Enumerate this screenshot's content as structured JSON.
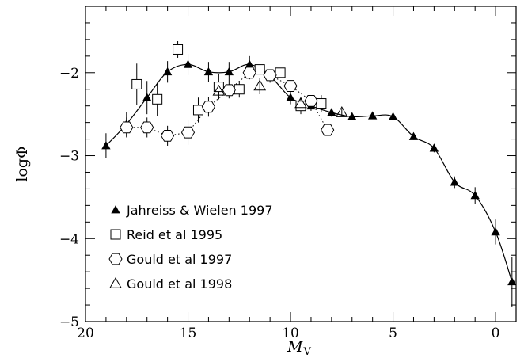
{
  "chart_data": {
    "type": "scatter",
    "title": "",
    "xlabel": "M_V",
    "xlabel_main": "M",
    "xlabel_sub": "V",
    "ylabel": "logΦ",
    "xlim": [
      20,
      -1
    ],
    "ylim": [
      -5,
      -1.2
    ],
    "x_reversed": true,
    "grid": false,
    "legend_position": "bottom-left",
    "xticks": [
      20,
      15,
      10,
      5,
      0
    ],
    "xtick_labels": [
      "20",
      "15",
      "10",
      "5",
      "0"
    ],
    "yticks": [
      -2,
      -3,
      -4,
      -5
    ],
    "ytick_labels": [
      "−2",
      "−3",
      "−4",
      "−5"
    ],
    "series": [
      {
        "name": "Jahreiss & Wielen 1997",
        "marker": "filled-triangle",
        "connect": "smooth-solid",
        "points": [
          {
            "x": 19,
            "y": -2.88,
            "err": 0.15
          },
          {
            "x": 18,
            "y": -2.62,
            "err": 0.15
          },
          {
            "x": 17,
            "y": -2.3,
            "err": 0.2
          },
          {
            "x": 16,
            "y": -1.99,
            "err": 0.13
          },
          {
            "x": 15,
            "y": -1.9,
            "err": 0.13
          },
          {
            "x": 14,
            "y": -1.99,
            "err": 0.12
          },
          {
            "x": 13,
            "y": -1.99,
            "err": 0.12
          },
          {
            "x": 12,
            "y": -1.9,
            "err": 0.1
          },
          {
            "x": 11,
            "y": -2.04,
            "err": 0.08
          },
          {
            "x": 10,
            "y": -2.3,
            "err": 0.08
          },
          {
            "x": 9,
            "y": -2.4,
            "err": 0.06
          },
          {
            "x": 8,
            "y": -2.48,
            "err": 0.05
          },
          {
            "x": 7,
            "y": -2.53,
            "err": 0.04
          },
          {
            "x": 6,
            "y": -2.52,
            "err": 0.04
          },
          {
            "x": 5,
            "y": -2.53,
            "err": 0.04
          },
          {
            "x": 4,
            "y": -2.77,
            "err": 0.04
          },
          {
            "x": 3,
            "y": -2.91,
            "err": 0.05
          },
          {
            "x": 2,
            "y": -3.32,
            "err": 0.07
          },
          {
            "x": 1,
            "y": -3.48,
            "err": 0.1
          },
          {
            "x": 0,
            "y": -3.92,
            "err": 0.15
          },
          {
            "x": -0.8,
            "y": -4.52,
            "err": 0.3
          }
        ]
      },
      {
        "name": "Reid et al 1995",
        "marker": "open-square",
        "connect": "none",
        "points": [
          {
            "x": 17.5,
            "y": -2.14,
            "err": 0.25
          },
          {
            "x": 16.5,
            "y": -2.32,
            "err": 0.2
          },
          {
            "x": 15.5,
            "y": -1.72,
            "err": 0.1
          },
          {
            "x": 14.5,
            "y": -2.45,
            "err": 0.15
          },
          {
            "x": 13.5,
            "y": -2.17,
            "err": 0.15
          },
          {
            "x": 12.5,
            "y": -2.2,
            "err": 0.1
          },
          {
            "x": 11.5,
            "y": -1.96,
            "err": 0.05
          },
          {
            "x": 10.5,
            "y": -2.0,
            "err": 0.05
          },
          {
            "x": 9.5,
            "y": -2.4,
            "err": 0.1
          },
          {
            "x": 8.5,
            "y": -2.37,
            "err": 0.1
          }
        ]
      },
      {
        "name": "Gould et al 1997",
        "marker": "open-hexagon",
        "connect": "dotted",
        "points": [
          {
            "x": 18,
            "y": -2.66,
            "err": 0.12
          },
          {
            "x": 17,
            "y": -2.66,
            "err": 0.12
          },
          {
            "x": 16,
            "y": -2.76,
            "err": 0.12
          },
          {
            "x": 15,
            "y": -2.72,
            "err": 0.15
          },
          {
            "x": 14,
            "y": -2.41,
            "err": 0.12
          },
          {
            "x": 13,
            "y": -2.21,
            "err": 0.1
          },
          {
            "x": 12,
            "y": -2.0,
            "err": 0.08
          },
          {
            "x": 11,
            "y": -2.03,
            "err": 0.06
          },
          {
            "x": 10,
            "y": -2.16,
            "err": 0.06
          },
          {
            "x": 9,
            "y": -2.34,
            "err": 0.06
          },
          {
            "x": 8.2,
            "y": -2.69,
            "err": 0.05
          }
        ]
      },
      {
        "name": "Gould et al 1998",
        "marker": "open-triangle",
        "connect": "none",
        "points": [
          {
            "x": 13.5,
            "y": -2.22,
            "err": 0.1
          },
          {
            "x": 11.5,
            "y": -2.16,
            "err": 0.1
          },
          {
            "x": 9.5,
            "y": -2.37,
            "err": 0.07
          },
          {
            "x": 7.5,
            "y": -2.48,
            "err": 0.05
          }
        ]
      }
    ]
  }
}
